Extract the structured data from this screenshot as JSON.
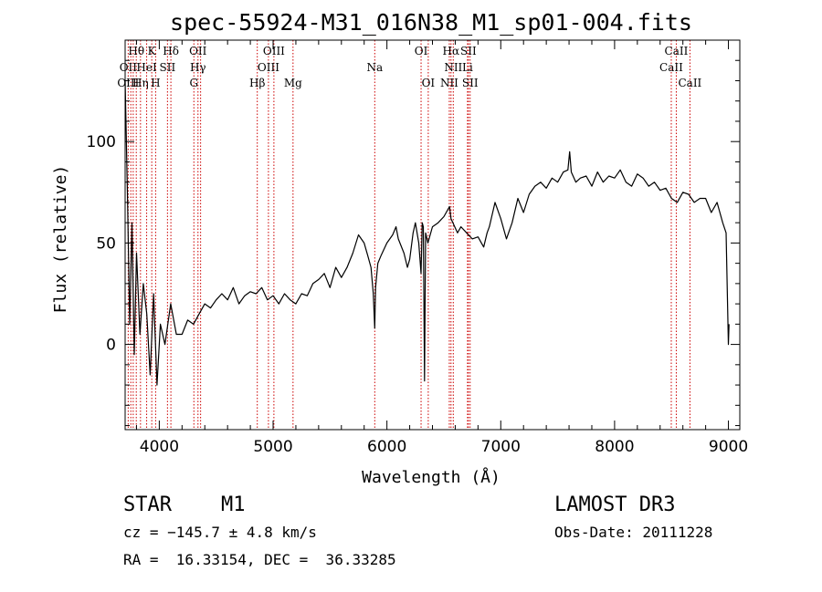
{
  "chart_data": {
    "type": "line",
    "title": "spec-55924-M31_016N38_M1_sp01-004.fits",
    "xlabel": "Wavelength (Å)",
    "ylabel": "Flux (relative)",
    "xlim": [
      3700,
      9100
    ],
    "ylim": [
      -42,
      150
    ],
    "xticks": [
      4000,
      5000,
      6000,
      7000,
      8000,
      9000
    ],
    "yticks": [
      0,
      50,
      100
    ],
    "series": [
      {
        "name": "flux",
        "x": [
          3700,
          3720,
          3740,
          3760,
          3780,
          3800,
          3830,
          3860,
          3890,
          3920,
          3950,
          3980,
          4010,
          4050,
          4100,
          4150,
          4200,
          4250,
          4300,
          4350,
          4400,
          4450,
          4500,
          4550,
          4600,
          4650,
          4700,
          4750,
          4800,
          4850,
          4900,
          4950,
          5000,
          5050,
          5100,
          5150,
          5200,
          5250,
          5300,
          5350,
          5400,
          5450,
          5500,
          5550,
          5600,
          5650,
          5700,
          5750,
          5800,
          5830,
          5860,
          5880,
          5893,
          5900,
          5920,
          5950,
          6000,
          6050,
          6080,
          6100,
          6150,
          6180,
          6200,
          6230,
          6250,
          6280,
          6300,
          6310,
          6320,
          6330,
          6340,
          6360,
          6400,
          6450,
          6500,
          6550,
          6563,
          6580,
          6620,
          6650,
          6700,
          6750,
          6800,
          6830,
          6850,
          6880,
          6900,
          6950,
          7000,
          7050,
          7100,
          7150,
          7200,
          7250,
          7300,
          7350,
          7400,
          7450,
          7500,
          7550,
          7590,
          7605,
          7620,
          7660,
          7700,
          7750,
          7800,
          7850,
          7900,
          7950,
          8000,
          8050,
          8100,
          8150,
          8200,
          8250,
          8300,
          8350,
          8400,
          8450,
          8500,
          8550,
          8600,
          8650,
          8700,
          8750,
          8800,
          8850,
          8900,
          8950,
          8980,
          9000,
          9005
        ],
        "values": [
          130,
          75,
          10,
          60,
          -5,
          45,
          5,
          30,
          15,
          -15,
          25,
          -20,
          10,
          0,
          20,
          5,
          5,
          12,
          10,
          15,
          20,
          18,
          22,
          25,
          22,
          28,
          20,
          24,
          26,
          25,
          28,
          22,
          24,
          20,
          25,
          22,
          20,
          25,
          24,
          30,
          32,
          35,
          28,
          38,
          33,
          38,
          45,
          54,
          50,
          44,
          38,
          25,
          8,
          28,
          40,
          44,
          50,
          54,
          58,
          52,
          45,
          38,
          42,
          55,
          60,
          50,
          35,
          60,
          58,
          -18,
          55,
          50,
          58,
          60,
          63,
          68,
          62,
          60,
          55,
          58,
          55,
          52,
          53,
          50,
          48,
          55,
          58,
          70,
          62,
          52,
          60,
          72,
          65,
          74,
          78,
          80,
          77,
          82,
          80,
          85,
          86,
          95,
          85,
          80,
          82,
          83,
          78,
          85,
          80,
          83,
          82,
          86,
          80,
          78,
          84,
          82,
          78,
          80,
          76,
          77,
          72,
          70,
          75,
          74,
          70,
          72,
          72,
          65,
          70,
          60,
          55,
          0,
          10
        ],
        "color": "#000000"
      }
    ],
    "line_labels": [
      {
        "text": "Hθ",
        "x": 3798,
        "row": 0
      },
      {
        "text": "K",
        "x": 3934,
        "row": 0
      },
      {
        "text": "Hδ",
        "x": 4102,
        "row": 0
      },
      {
        "text": "OII",
        "x": 4340,
        "row": 0
      },
      {
        "text": "OIII",
        "x": 5007,
        "row": 0
      },
      {
        "text": "OI",
        "x": 6300,
        "row": 0
      },
      {
        "text": "Hα",
        "x": 6563,
        "row": 0
      },
      {
        "text": "SII",
        "x": 6716,
        "row": 0
      },
      {
        "text": "CaII",
        "x": 8542,
        "row": 0
      },
      {
        "text": "OII",
        "x": 3727,
        "row": 1
      },
      {
        "text": "HeI",
        "x": 3889,
        "row": 1
      },
      {
        "text": "SII",
        "x": 4072,
        "row": 1
      },
      {
        "text": "Hγ",
        "x": 4340,
        "row": 1
      },
      {
        "text": "OIII",
        "x": 4959,
        "row": 1
      },
      {
        "text": "Na",
        "x": 5893,
        "row": 1
      },
      {
        "text": "NII",
        "x": 6583,
        "row": 1
      },
      {
        "text": "Li",
        "x": 6708,
        "row": 1
      },
      {
        "text": "CaII",
        "x": 8498,
        "row": 1
      },
      {
        "text": "OIII",
        "x": 3727,
        "row": 2
      },
      {
        "text": "Hη",
        "x": 3835,
        "row": 2
      },
      {
        "text": "H",
        "x": 3968,
        "row": 2
      },
      {
        "text": "G",
        "x": 4304,
        "row": 2
      },
      {
        "text": "Hβ",
        "x": 4861,
        "row": 2
      },
      {
        "text": "Mg",
        "x": 5175,
        "row": 2
      },
      {
        "text": "OI",
        "x": 6363,
        "row": 2
      },
      {
        "text": "NII",
        "x": 6548,
        "row": 2
      },
      {
        "text": "SII",
        "x": 6731,
        "row": 2
      },
      {
        "text": "CaII",
        "x": 8662,
        "row": 2
      }
    ],
    "line_positions": [
      3727,
      3750,
      3771,
      3798,
      3835,
      3889,
      3934,
      3968,
      4072,
      4102,
      4304,
      4340,
      4363,
      4861,
      4959,
      5007,
      5175,
      5893,
      6300,
      6363,
      6548,
      6563,
      6583,
      6708,
      6716,
      6731,
      8498,
      8542,
      8662
    ],
    "line_color": "#cc0000"
  },
  "info": {
    "class_label": "STAR",
    "subclass": "M1",
    "survey": "LAMOST DR3",
    "redshift": "cz = −145.7 ± 4.8 km/s",
    "obs_date": "Obs-Date: 20111228",
    "coords": "RA =  16.33154, DEC =  36.33285"
  }
}
